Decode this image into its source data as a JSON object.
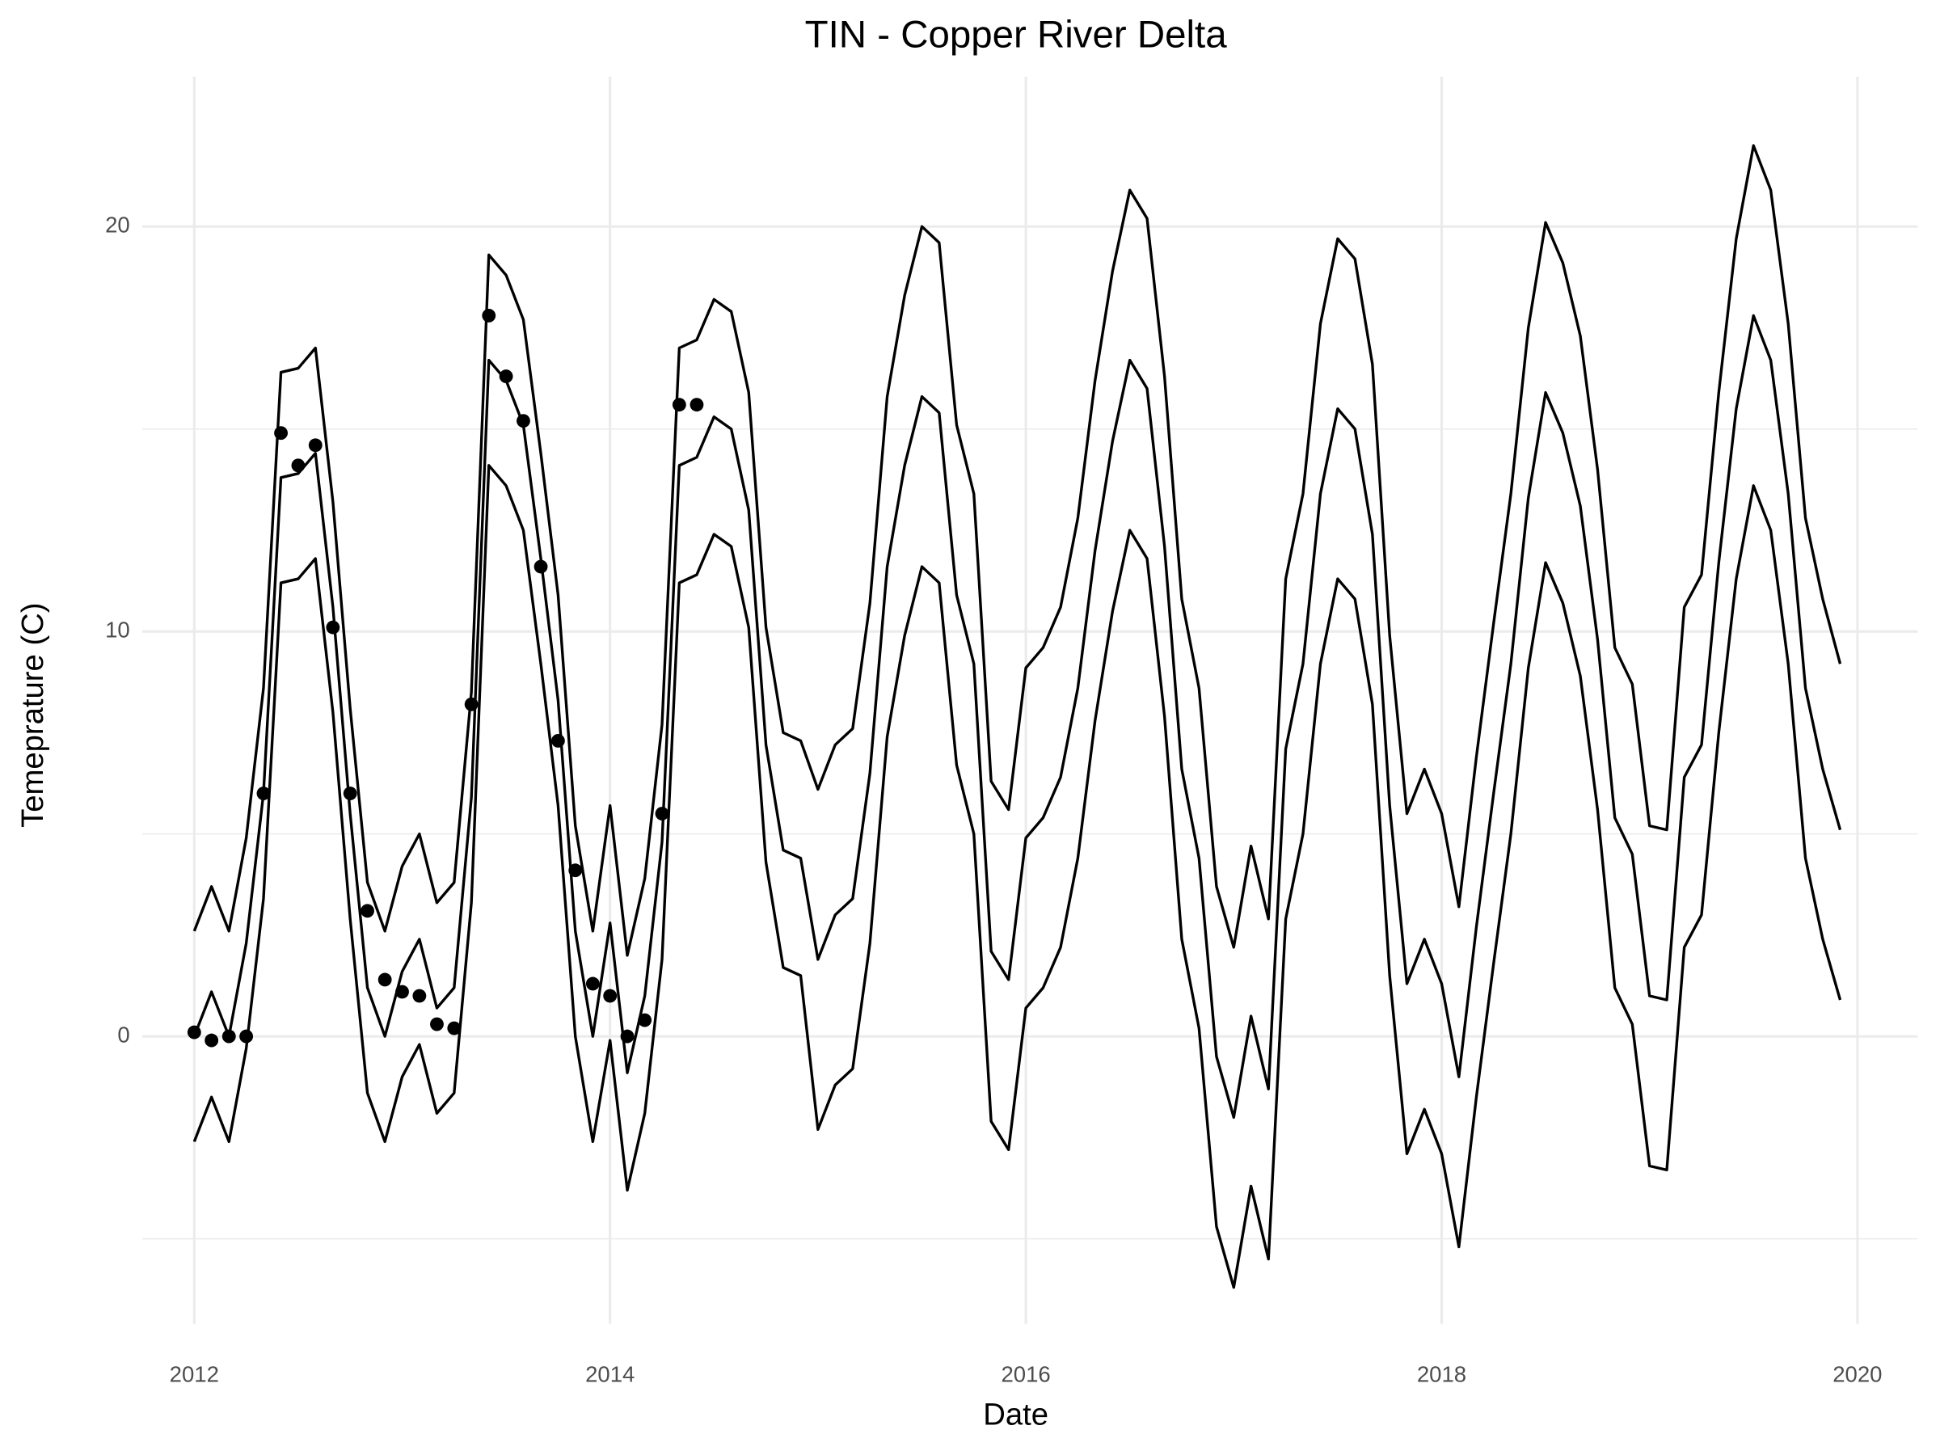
{
  "chart_data": {
    "type": "line",
    "title": "TIN - Copper River Delta",
    "x_label": "Date",
    "y_label": "Temeprature (C)",
    "xlim": [
      2011.75,
      2020.29
    ],
    "xticks": [
      2012,
      2014,
      2016,
      2018,
      2020
    ],
    "ylim": [
      -7.1,
      23.7
    ],
    "yticks": [
      0,
      10,
      20
    ],
    "minor_yticks": [
      -5,
      5,
      15
    ],
    "grid": true,
    "x": [
      2012,
      2012.083,
      2012.167,
      2012.25,
      2012.333,
      2012.417,
      2012.5,
      2012.583,
      2012.667,
      2012.75,
      2012.833,
      2012.917,
      2013,
      2013.083,
      2013.167,
      2013.25,
      2013.333,
      2013.417,
      2013.5,
      2013.583,
      2013.667,
      2013.75,
      2013.833,
      2013.917,
      2014,
      2014.083,
      2014.167,
      2014.25,
      2014.333,
      2014.417,
      2014.5,
      2014.583,
      2014.667,
      2014.75,
      2014.833,
      2014.917,
      2015,
      2015.083,
      2015.167,
      2015.25,
      2015.333,
      2015.417,
      2015.5,
      2015.583,
      2015.667,
      2015.75,
      2015.833,
      2015.917,
      2016,
      2016.083,
      2016.167,
      2016.25,
      2016.333,
      2016.417,
      2016.5,
      2016.583,
      2016.667,
      2016.75,
      2016.833,
      2016.917,
      2017,
      2017.083,
      2017.167,
      2017.25,
      2017.333,
      2017.417,
      2017.5,
      2017.583,
      2017.667,
      2017.75,
      2017.833,
      2017.917,
      2018,
      2018.083,
      2018.167,
      2018.25,
      2018.333,
      2018.417,
      2018.5,
      2018.583,
      2018.667,
      2018.75,
      2018.833,
      2018.917,
      2019,
      2019.083,
      2019.167,
      2019.25,
      2019.333,
      2019.417,
      2019.5,
      2019.583,
      2019.667,
      2019.75,
      2019.833,
      2019.917
    ],
    "series": [
      {
        "style": "line",
        "color": "#000000",
        "values": [
          2.6,
          3.7,
          2.6,
          4.9,
          8.6,
          16.4,
          16.5,
          17.0,
          13.2,
          8.1,
          3.8,
          2.6,
          4.2,
          5.0,
          3.3,
          3.8,
          8.5,
          19.3,
          18.8,
          17.7,
          14.4,
          10.9,
          5.2,
          2.6,
          5.7,
          2.0,
          3.9,
          7.7,
          17.0,
          17.2,
          18.2,
          17.9,
          15.9,
          10.1,
          7.5,
          7.3,
          6.1,
          7.2,
          7.6,
          10.7,
          15.8,
          18.3,
          20.0,
          19.6,
          15.1,
          13.4,
          6.3,
          5.6,
          9.1,
          9.6,
          10.6,
          12.8,
          16.2,
          18.9,
          20.9,
          20.2,
          16.3,
          10.8,
          8.6,
          3.7,
          2.2,
          4.7,
          2.9,
          11.3,
          13.4,
          17.6,
          19.7,
          19.2,
          16.6,
          9.9,
          5.5,
          6.6,
          5.5,
          3.2,
          6.9,
          10.2,
          13.4,
          17.5,
          20.1,
          19.1,
          17.3,
          14.0,
          9.6,
          8.7,
          5.2,
          5.1,
          10.6,
          11.4,
          15.9,
          19.7,
          22.0,
          20.9,
          17.6,
          12.8,
          10.8,
          9.2
        ]
      },
      {
        "style": "line",
        "color": "#000000",
        "values": [
          0.0,
          1.1,
          0.0,
          2.3,
          6.0,
          13.8,
          13.9,
          14.4,
          10.6,
          5.5,
          1.2,
          0.0,
          1.6,
          2.4,
          0.7,
          1.2,
          5.9,
          16.7,
          16.2,
          15.1,
          11.8,
          8.3,
          2.6,
          0.0,
          2.8,
          -0.9,
          1.0,
          4.8,
          14.1,
          14.3,
          15.3,
          15.0,
          13.0,
          7.2,
          4.6,
          4.4,
          1.9,
          3.0,
          3.4,
          6.5,
          11.6,
          14.1,
          15.8,
          15.4,
          10.9,
          9.2,
          2.1,
          1.4,
          4.9,
          5.4,
          6.4,
          8.6,
          12.0,
          14.7,
          16.7,
          16.0,
          12.1,
          6.6,
          4.4,
          -0.5,
          -2.0,
          0.5,
          -1.3,
          7.1,
          9.2,
          13.4,
          15.5,
          15.0,
          12.4,
          5.7,
          1.3,
          2.4,
          1.3,
          -1.0,
          2.7,
          6.0,
          9.2,
          13.3,
          15.9,
          14.9,
          13.1,
          9.8,
          5.4,
          4.5,
          1.0,
          0.9,
          6.4,
          7.2,
          11.7,
          15.5,
          17.8,
          16.7,
          13.4,
          8.6,
          6.6,
          5.1
        ]
      },
      {
        "style": "line",
        "color": "#000000",
        "values": [
          -2.6,
          -1.5,
          -2.6,
          -0.3,
          3.4,
          11.2,
          11.3,
          11.8,
          8.0,
          2.9,
          -1.4,
          -2.6,
          -1.0,
          -0.2,
          -1.9,
          -1.4,
          3.3,
          14.1,
          13.6,
          12.5,
          9.2,
          5.7,
          0.0,
          -2.6,
          -0.1,
          -3.8,
          -1.9,
          1.9,
          11.2,
          11.4,
          12.4,
          12.1,
          10.1,
          4.3,
          1.7,
          1.5,
          -2.3,
          -1.2,
          -0.8,
          2.3,
          7.4,
          9.9,
          11.6,
          11.2,
          6.7,
          5.0,
          -2.1,
          -2.8,
          0.7,
          1.2,
          2.2,
          4.4,
          7.8,
          10.5,
          12.5,
          11.8,
          7.9,
          2.4,
          0.2,
          -4.7,
          -6.2,
          -3.7,
          -5.5,
          2.9,
          5.0,
          9.2,
          11.3,
          10.8,
          8.2,
          1.5,
          -2.9,
          -1.8,
          -2.9,
          -5.2,
          -1.5,
          1.8,
          5.0,
          9.1,
          11.7,
          10.7,
          8.9,
          5.6,
          1.2,
          0.3,
          -3.2,
          -3.3,
          2.2,
          3.0,
          7.5,
          11.3,
          13.6,
          12.5,
          9.2,
          4.4,
          2.4,
          0.9
        ]
      },
      {
        "style": "points",
        "color": "#000000",
        "x": [
          2012,
          2012.083,
          2012.167,
          2012.25,
          2012.333,
          2012.417,
          2012.5,
          2012.583,
          2012.667,
          2012.75,
          2012.833,
          2012.917,
          2013,
          2013.083,
          2013.167,
          2013.25,
          2013.333,
          2013.417,
          2013.5,
          2013.583,
          2013.667,
          2013.75,
          2013.833,
          2013.917,
          2014,
          2014.083,
          2014.167,
          2014.25,
          2014.333,
          2014.417
        ],
        "values": [
          0.1,
          -0.1,
          0.0,
          0.0,
          6.0,
          14.9,
          14.1,
          14.6,
          10.1,
          6.0,
          3.1,
          1.4,
          1.1,
          1.0,
          0.3,
          0.2,
          8.2,
          17.8,
          16.3,
          15.2,
          11.6,
          7.3,
          4.1,
          1.3,
          1.0,
          0.0,
          0.4,
          5.5,
          15.6,
          15.6
        ]
      }
    ]
  }
}
